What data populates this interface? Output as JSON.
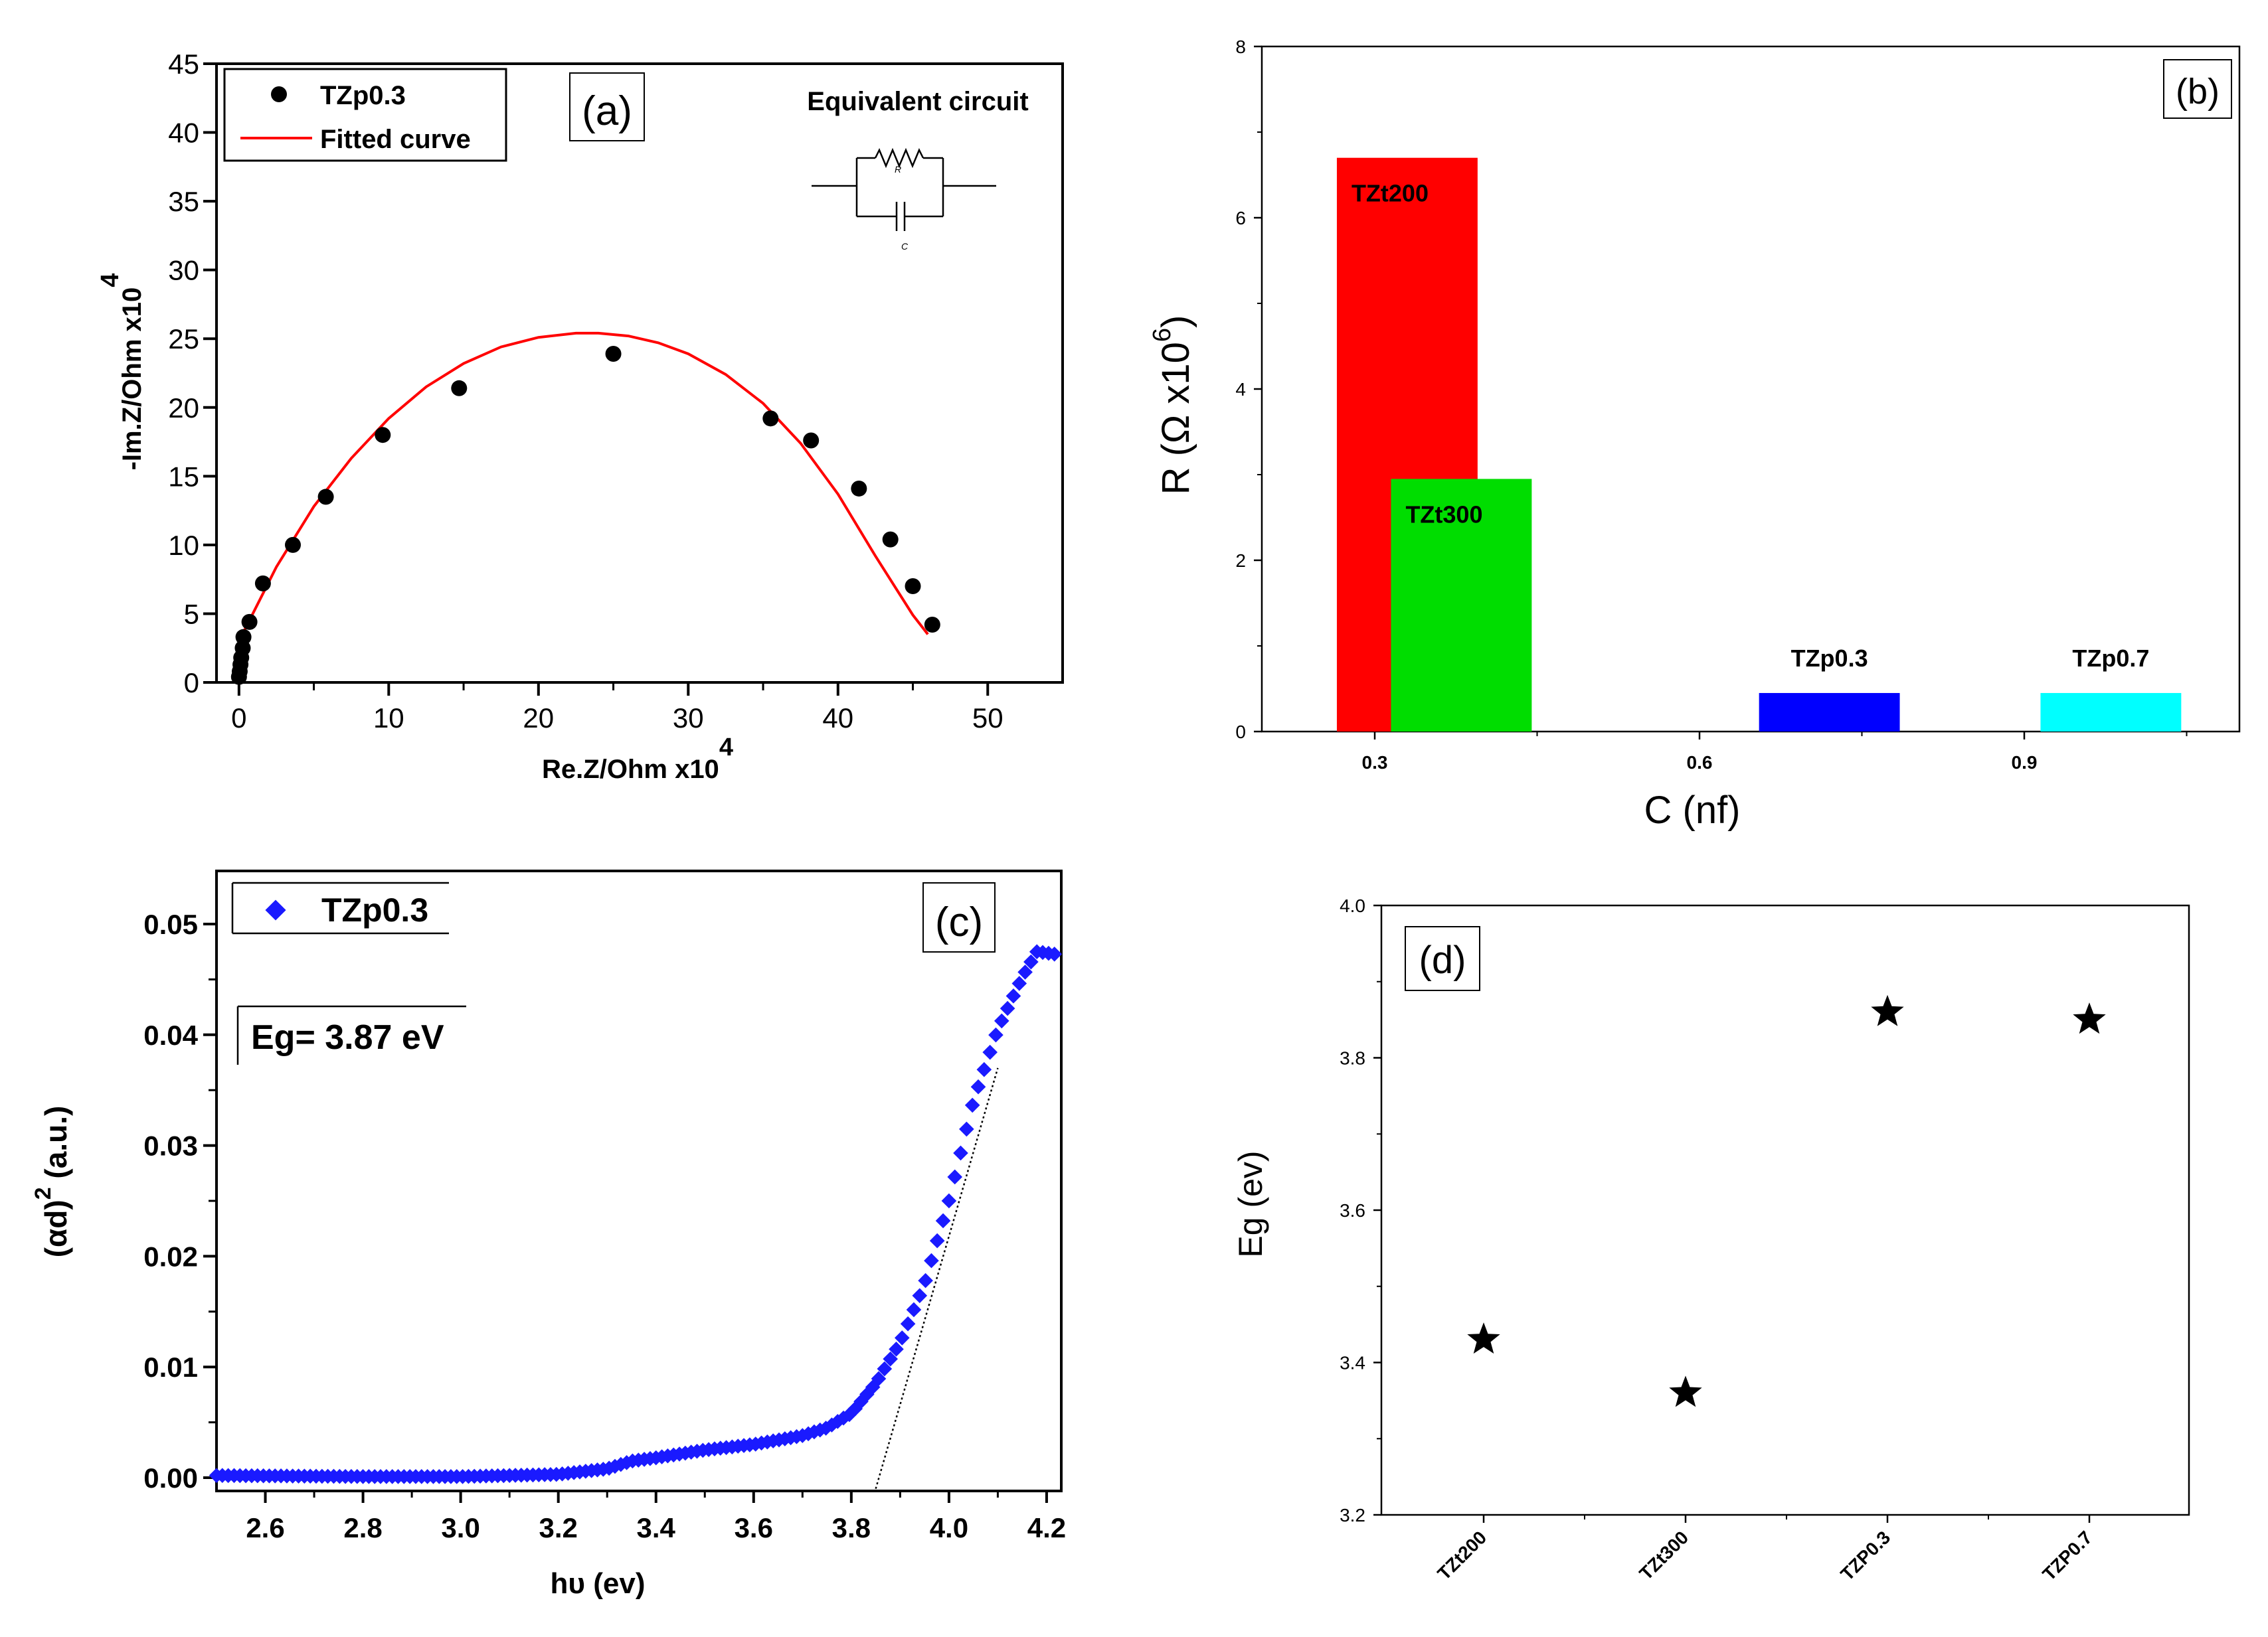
{
  "figure": {
    "panels": [
      "a",
      "b",
      "c",
      "d"
    ]
  },
  "chart_data": [
    {
      "id": "a",
      "type": "scatter",
      "panel_label": "(a)",
      "xlabel": "Re.Z/Ohm x10",
      "xlabel_sup": "4",
      "ylabel": "-Im.Z/Ohm x10",
      "ylabel_sup": "4",
      "xlim": [
        -1.5,
        55
      ],
      "ylim": [
        0,
        45
      ],
      "xticks": [
        0,
        10,
        20,
        30,
        40,
        50
      ],
      "yticks": [
        0,
        5,
        10,
        15,
        20,
        25,
        30,
        35,
        40,
        45
      ],
      "inset_title": "Equivalent circuit",
      "inset_r_label": "R",
      "inset_c_label": "C",
      "legend": [
        "TZp0.3",
        "Fitted curve"
      ],
      "series": [
        {
          "name": "TZp0.3",
          "kind": "points",
          "color": "#000000",
          "x": [
            0.0,
            0.05,
            0.1,
            0.15,
            0.25,
            0.3,
            0.7,
            1.6,
            3.6,
            5.8,
            9.6,
            14.7,
            25.0,
            35.5,
            38.2,
            41.4,
            43.5,
            45.0,
            46.3
          ],
          "y": [
            0.4,
            0.8,
            1.3,
            1.8,
            2.5,
            3.3,
            4.4,
            7.2,
            10.0,
            13.5,
            18.0,
            21.4,
            23.9,
            19.2,
            17.6,
            14.1,
            10.4,
            7.0,
            4.2
          ]
        },
        {
          "name": "Fitted curve",
          "kind": "line",
          "color": "#ff0000",
          "x": [
            0.0,
            2.5,
            5.0,
            7.5,
            10.0,
            12.5,
            15.0,
            17.5,
            20.0,
            22.5,
            24.0,
            26.0,
            28.0,
            30.0,
            32.5,
            35.0,
            37.5,
            40.0,
            42.5,
            45.0,
            46.0
          ],
          "y": [
            3.0,
            8.4,
            12.8,
            16.3,
            19.2,
            21.5,
            23.2,
            24.4,
            25.1,
            25.4,
            25.4,
            25.2,
            24.7,
            23.9,
            22.4,
            20.3,
            17.4,
            13.7,
            9.2,
            4.9,
            3.5
          ]
        }
      ]
    },
    {
      "id": "b",
      "type": "bar",
      "panel_label": "(b)",
      "xlabel": "C (nf)",
      "ylabel": "R (Ω x10",
      "ylabel_sup": "6",
      "ylabel_tail": ")",
      "xlim": [
        0.2,
        1.1
      ],
      "ylim": [
        0,
        8
      ],
      "xticks": [
        0.3,
        0.6,
        0.9
      ],
      "yticks": [
        0,
        2,
        4,
        6,
        8
      ],
      "series": [
        {
          "name": "TZt200",
          "x_start": 0.265,
          "x_end": 0.395,
          "value": 6.7,
          "color": "#ff0000",
          "label_color": "#000000"
        },
        {
          "name": "TZt300",
          "x_start": 0.315,
          "x_end": 0.445,
          "value": 2.95,
          "color": "#00dd00",
          "label_color": "#000000"
        },
        {
          "name": "TZp0.3",
          "x_start": 0.655,
          "x_end": 0.785,
          "value": 0.45,
          "color": "#0000ff",
          "label_color": "#000000"
        },
        {
          "name": "TZp0.7",
          "x_start": 0.915,
          "x_end": 1.045,
          "value": 0.45,
          "color": "#00ffff",
          "label_color": "#000000"
        }
      ]
    },
    {
      "id": "c",
      "type": "scatter",
      "panel_label": "(c)",
      "xlabel": "hυ (ev)",
      "ylabel": "(αd)",
      "ylabel_sup": "2",
      "ylabel_tail": " (a.u.)",
      "xlim": [
        2.5,
        4.23
      ],
      "ylim": [
        -0.0005,
        0.055
      ],
      "xticks": [
        2.6,
        2.8,
        3.0,
        3.2,
        3.4,
        3.6,
        3.8,
        4.0,
        4.2
      ],
      "yticks": [
        0.0,
        0.01,
        0.02,
        0.03,
        0.04,
        0.05
      ],
      "ytick_labels": [
        "0.00",
        "0.01",
        "0.02",
        "0.03",
        "0.04",
        "0.05"
      ],
      "legend": [
        "TZp0.3"
      ],
      "annotation": "Eg= 3.87 eV",
      "marker_color": "#1a1aff",
      "curve_x": [
        2.5,
        2.8,
        3.0,
        3.2,
        3.3,
        3.35,
        3.4,
        3.5,
        3.6,
        3.7,
        3.75,
        3.8,
        3.85,
        3.9,
        3.95,
        4.0,
        4.05,
        4.1,
        4.15,
        4.18,
        4.23
      ],
      "curve_y": [
        0.0002,
        0.0001,
        0.0001,
        0.0003,
        0.0008,
        0.0015,
        0.0018,
        0.0025,
        0.003,
        0.0038,
        0.0045,
        0.0058,
        0.0085,
        0.0122,
        0.0175,
        0.025,
        0.034,
        0.0405,
        0.0452,
        0.0475,
        0.0472
      ],
      "tangent": {
        "x": [
          3.85,
          4.1
        ],
        "y": [
          -0.001,
          0.037
        ]
      }
    },
    {
      "id": "d",
      "type": "scatter",
      "panel_label": "(d)",
      "xlabel": "",
      "ylabel": "Eg (ev)",
      "ylim": [
        3.2,
        4.0
      ],
      "yticks": [
        3.2,
        3.4,
        3.6,
        3.8,
        4.0
      ],
      "ytick_labels": [
        "3.2",
        "3.4",
        "3.6",
        "3.8",
        "4.0"
      ],
      "categories": [
        "TZt200",
        "TZt300",
        "TZP0.3",
        "TZP0.7"
      ],
      "values": [
        3.43,
        3.36,
        3.86,
        3.85
      ]
    }
  ]
}
